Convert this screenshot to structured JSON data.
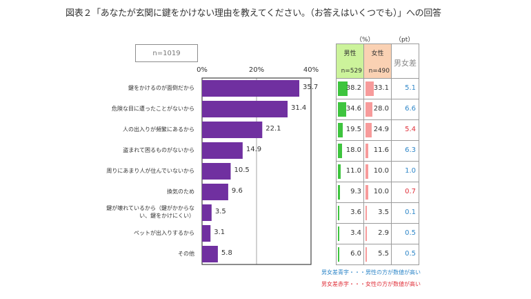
{
  "title": "図表２「あなたが玄関に鍵をかけない理由を教えてください。（お答えはいくつでも）」への回答",
  "sample_label": "n=1019",
  "colors": {
    "bar": "#7030a0",
    "male_header": "#ccf39b",
    "female_header": "#fad1b3",
    "male_bar": "#3ec43e",
    "female_bar": "#f79b9b",
    "diff_blue": "#2e86c8",
    "diff_red": "#e0303a"
  },
  "chart_data": {
    "type": "bar",
    "orientation": "horizontal",
    "title": "図表２「あなたが玄関に鍵をかけない理由を教えてください。（お答えはいくつでも）」への回答",
    "xlabel": "",
    "ylabel": "",
    "xlim": [
      0,
      40
    ],
    "x_ticks": [
      "0%",
      "20%",
      "40%"
    ],
    "grid": "vertical at 20%",
    "categories": [
      "鍵をかけるのが面倒だから",
      "危険な目に遭ったことがないから",
      "人の出入りが頻繁にあるから",
      "盗まれて困るものがないから",
      "周りにあまり人が住んでいないから",
      "換気のため",
      "鍵が壊れているから（鍵がかからない、鍵をかけにくい）",
      "ペットが出入りするから",
      "その他"
    ],
    "category_lines": [
      [
        "鍵をかけるのが面倒だから"
      ],
      [
        "危険な目に遭ったことがないから"
      ],
      [
        "人の出入りが頻繁にあるから"
      ],
      [
        "盗まれて困るものがないから"
      ],
      [
        "周りにあまり人が住んでいないから"
      ],
      [
        "換気のため"
      ],
      [
        "鍵が壊れているから（鍵がかからな",
        "い、鍵をかけにくい）"
      ],
      [
        "ペットが出入りするから"
      ],
      [
        "その他"
      ]
    ],
    "values": [
      35.7,
      31.4,
      22.1,
      14.9,
      10.5,
      9.6,
      3.5,
      3.1,
      5.8
    ],
    "value_labels": [
      "35.7",
      "31.4",
      "22.1",
      "14.9",
      "10.5",
      "9.6",
      "3.5",
      "3.1",
      "5.8"
    ],
    "table": {
      "unit_pct": "（%）",
      "unit_pt": "（pt）",
      "headers": [
        {
          "label": "男性",
          "n": "n=529"
        },
        {
          "label": "女性",
          "n": "n=490"
        },
        {
          "label": "男女差"
        }
      ],
      "male": [
        38.2,
        34.6,
        19.5,
        18.0,
        11.0,
        9.3,
        3.6,
        3.4,
        6.0
      ],
      "male_labels": [
        "38.2",
        "34.6",
        "19.5",
        "18.0",
        "11.0",
        "9.3",
        "3.6",
        "3.4",
        "6.0"
      ],
      "female": [
        33.1,
        28.0,
        24.9,
        11.6,
        10.0,
        10.0,
        3.5,
        2.9,
        5.5
      ],
      "female_labels": [
        "33.1",
        "28.0",
        "24.9",
        "11.6",
        "10.0",
        "10.0",
        "3.5",
        "2.9",
        "5.5"
      ],
      "diff_labels": [
        "5.1",
        "6.6",
        "5.4",
        "6.3",
        "1.0",
        "0.7",
        "0.1",
        "0.5",
        "0.5"
      ],
      "diff_higher": [
        "male",
        "male",
        "female",
        "male",
        "male",
        "female",
        "male",
        "male",
        "male"
      ]
    }
  },
  "notes": {
    "blue": "男女差青字・・・男性の方が数値が高い",
    "red": "男女差赤字・・・女性の方が数値が高い"
  }
}
